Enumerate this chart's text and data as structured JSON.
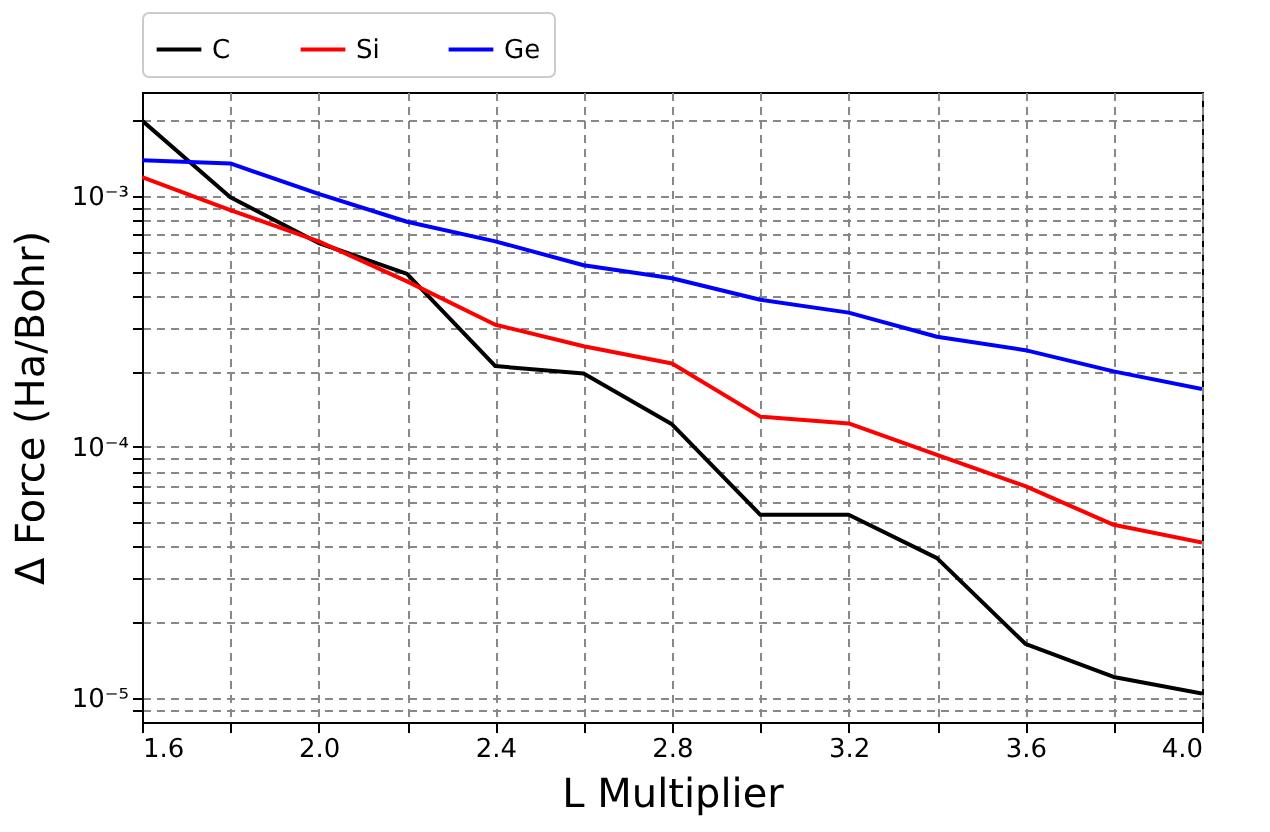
{
  "chart_data": {
    "type": "line",
    "xlabel": "L Multiplier",
    "ylabel": "Δ Force (Ha/Bohr)",
    "x": [
      1.6,
      1.8,
      2.0,
      2.2,
      2.4,
      2.6,
      2.8,
      3.0,
      3.2,
      3.4,
      3.6,
      3.8,
      4.0
    ],
    "series": [
      {
        "name": "C",
        "color": "#000000",
        "values": [
          0.002,
          0.00099,
          0.00065,
          0.00049,
          0.00021,
          0.000196,
          0.000123,
          5.36e-05,
          5.36e-05,
          3.6e-05,
          1.64e-05,
          1.21e-05,
          1.04e-05
        ]
      },
      {
        "name": "Si",
        "color": "#ff0000",
        "values": [
          0.00119,
          0.00088,
          0.00066,
          0.000457,
          0.000307,
          0.000252,
          0.000215,
          0.000132,
          0.000124,
          9.3e-05,
          6.97e-05,
          4.89e-05,
          4.16e-05
        ]
      },
      {
        "name": "Ge",
        "color": "#0000ff",
        "values": [
          0.00139,
          0.00135,
          0.00102,
          0.00079,
          0.00066,
          0.00053,
          0.00047,
          0.000386,
          0.000343,
          0.000275,
          0.000243,
          0.0002,
          0.00017
        ]
      }
    ],
    "xlim": [
      1.6,
      4.0
    ],
    "xticks": [
      {
        "value": 1.6,
        "label": "1.6"
      },
      {
        "value": 1.8,
        "label": null
      },
      {
        "value": 2.0,
        "label": "2.0"
      },
      {
        "value": 2.2,
        "label": null
      },
      {
        "value": 2.4,
        "label": "2.4"
      },
      {
        "value": 2.6,
        "label": null
      },
      {
        "value": 2.8,
        "label": "2.8"
      },
      {
        "value": 3.0,
        "label": null
      },
      {
        "value": 3.2,
        "label": "3.2"
      },
      {
        "value": 3.4,
        "label": null
      },
      {
        "value": 3.6,
        "label": "3.6"
      },
      {
        "value": 3.8,
        "label": null
      },
      {
        "value": 4.0,
        "label": "4.0"
      }
    ],
    "ylim": [
      8e-06,
      0.0026
    ],
    "yticks": [
      {
        "value": 9e-06,
        "label": null
      },
      {
        "value": 1e-05,
        "label": "10⁻⁵"
      },
      {
        "value": 2e-05,
        "label": null
      },
      {
        "value": 3e-05,
        "label": null
      },
      {
        "value": 4e-05,
        "label": null
      },
      {
        "value": 5e-05,
        "label": null
      },
      {
        "value": 6e-05,
        "label": null
      },
      {
        "value": 7e-05,
        "label": null
      },
      {
        "value": 8e-05,
        "label": null
      },
      {
        "value": 9e-05,
        "label": null
      },
      {
        "value": 0.0001,
        "label": "10⁻⁴"
      },
      {
        "value": 0.0002,
        "label": null
      },
      {
        "value": 0.0003,
        "label": null
      },
      {
        "value": 0.0004,
        "label": null
      },
      {
        "value": 0.0005,
        "label": null
      },
      {
        "value": 0.0006,
        "label": null
      },
      {
        "value": 0.0007,
        "label": null
      },
      {
        "value": 0.0008,
        "label": null
      },
      {
        "value": 0.0009,
        "label": null
      },
      {
        "value": 0.001,
        "label": "10⁻³"
      },
      {
        "value": 0.002,
        "label": null
      }
    ],
    "log": "y",
    "grid": true,
    "legend": "top"
  }
}
